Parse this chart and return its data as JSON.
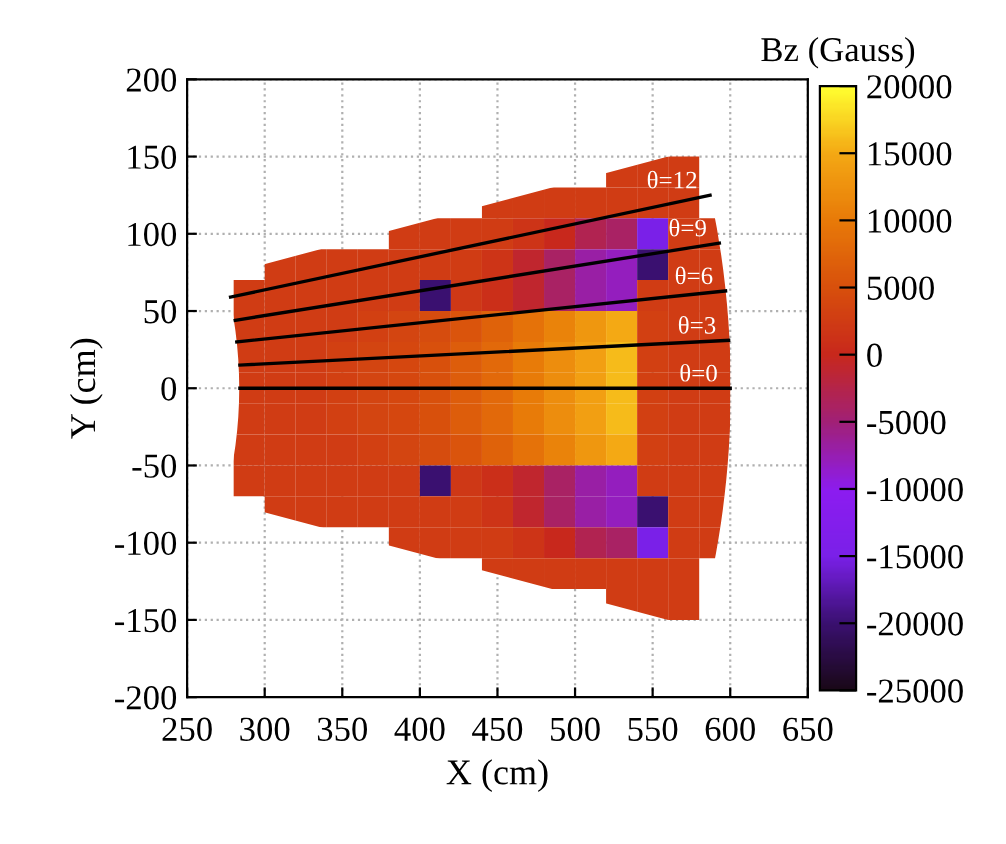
{
  "chart_data": {
    "type": "heatmap",
    "xlabel": "X (cm)",
    "ylabel": "Y (cm)",
    "clabel": "Bz (Gauss)",
    "x": [
      270,
      290,
      310,
      330,
      350,
      370,
      390,
      410,
      430,
      450,
      470,
      490,
      510,
      530,
      550,
      570,
      590
    ],
    "y": [
      140,
      120,
      100,
      80,
      60,
      40,
      20,
      0,
      -20,
      -40,
      -60,
      -80,
      -100,
      -120,
      -140
    ],
    "cells": [
      [
        null,
        null,
        null,
        null,
        null,
        null,
        null,
        null,
        null,
        null,
        null,
        null,
        null,
        2500,
        2500,
        2500,
        null
      ],
      [
        null,
        null,
        null,
        null,
        null,
        null,
        null,
        null,
        null,
        2500,
        2500,
        2500,
        2500,
        2500,
        2500,
        2500,
        null
      ],
      [
        null,
        null,
        null,
        null,
        null,
        null,
        2500,
        2500,
        2500,
        2500,
        1500,
        0,
        -3000,
        -4000,
        -15000,
        2500,
        2500
      ],
      [
        null,
        null,
        2500,
        2500,
        2500,
        2500,
        2500,
        2500,
        2500,
        1500,
        -1000,
        -4000,
        -7000,
        -8000,
        -20000,
        2500,
        2500
      ],
      [
        null,
        2500,
        2500,
        2500,
        2500,
        2500,
        2500,
        -20000,
        2000,
        1000,
        -1000,
        -4000,
        -7000,
        -8000,
        2500,
        2500,
        2500
      ],
      [
        null,
        2500,
        2500,
        2500,
        2500,
        3000,
        3500,
        4500,
        5500,
        7000,
        9000,
        11000,
        13000,
        15000,
        3000,
        2500,
        2500
      ],
      [
        null,
        2500,
        2500,
        2500,
        3000,
        3500,
        4000,
        5000,
        6500,
        8000,
        10000,
        12000,
        14000,
        16000,
        3000,
        2500,
        2500
      ],
      [
        null,
        2500,
        2500,
        2500,
        3000,
        3500,
        4000,
        5000,
        6500,
        8000,
        10000,
        12000,
        14000,
        16000,
        3000,
        2500,
        2500
      ],
      [
        null,
        2500,
        2500,
        2500,
        3000,
        3500,
        4000,
        5000,
        6500,
        8000,
        10000,
        12000,
        14000,
        16000,
        3000,
        2500,
        2500
      ],
      [
        null,
        2500,
        2500,
        2500,
        2500,
        3000,
        3500,
        4500,
        5500,
        7000,
        9000,
        11000,
        13000,
        15000,
        3000,
        2500,
        2500
      ],
      [
        null,
        2500,
        2500,
        2500,
        2500,
        2500,
        2500,
        -20000,
        2000,
        1000,
        -1000,
        -4000,
        -7000,
        -8000,
        2500,
        2500,
        2500
      ],
      [
        null,
        null,
        2500,
        2500,
        2500,
        2500,
        2500,
        2500,
        2500,
        1500,
        -1000,
        -4000,
        -7000,
        -8000,
        -20000,
        2500,
        2500
      ],
      [
        null,
        null,
        null,
        null,
        null,
        null,
        2500,
        2500,
        2500,
        2500,
        1500,
        0,
        -3000,
        -4000,
        -15000,
        2500,
        2500
      ],
      [
        null,
        null,
        null,
        null,
        null,
        null,
        null,
        null,
        null,
        2500,
        2500,
        2500,
        2500,
        2500,
        2500,
        2500,
        null
      ],
      [
        null,
        null,
        null,
        null,
        null,
        null,
        null,
        null,
        null,
        null,
        null,
        null,
        null,
        2500,
        2500,
        2500,
        null
      ]
    ],
    "clim": [
      -25000,
      20000
    ],
    "cticks": [
      -25000,
      -20000,
      -15000,
      -10000,
      -5000,
      0,
      5000,
      10000,
      15000,
      20000
    ],
    "xlim": [
      250,
      650
    ],
    "xticks": [
      250,
      300,
      350,
      400,
      450,
      500,
      550,
      600,
      650
    ],
    "ylim": [
      -200,
      200
    ],
    "yticks": [
      -200,
      -150,
      -100,
      -50,
      0,
      50,
      100,
      150,
      200
    ],
    "grid": true,
    "legend": false,
    "series": [
      {
        "type": "line",
        "name": "θ=12",
        "color": "#000000",
        "x": [
          278,
          587
        ],
        "values": [
          59,
          125
        ]
      },
      {
        "type": "line",
        "name": "θ=9",
        "color": "#000000",
        "x": [
          281,
          593
        ],
        "values": [
          44,
          94
        ]
      },
      {
        "type": "line",
        "name": "θ=6",
        "color": "#000000",
        "x": [
          282,
          597
        ],
        "values": [
          30,
          63
        ]
      },
      {
        "type": "line",
        "name": "θ=3",
        "color": "#000000",
        "x": [
          284,
          599
        ],
        "values": [
          15,
          31
        ]
      },
      {
        "type": "line",
        "name": "θ=0",
        "color": "#000000",
        "x": [
          284,
          600
        ],
        "values": [
          0,
          0
        ]
      }
    ]
  }
}
